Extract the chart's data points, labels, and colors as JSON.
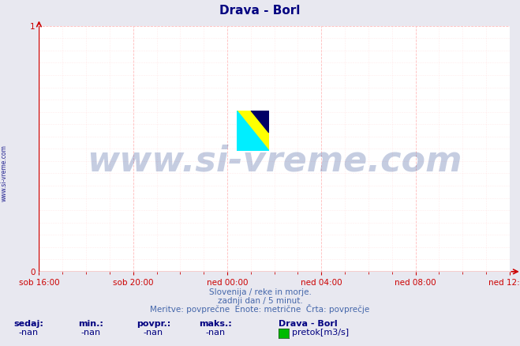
{
  "title": "Drava - Borl",
  "title_color": "#000080",
  "background_color": "#e8e8f0",
  "plot_bg_color": "#ffffff",
  "grid_color": "#ffaaaa",
  "grid_color_minor": "#ffdddd",
  "axis_color": "#cc0000",
  "xlabel_ticks": [
    "sob 16:00",
    "sob 20:00",
    "ned 00:00",
    "ned 04:00",
    "ned 08:00",
    "ned 12:00"
  ],
  "tick_positions": [
    0.0,
    0.2,
    0.4,
    0.6,
    0.8,
    1.0
  ],
  "ylim": [
    0,
    1
  ],
  "xlim": [
    0,
    1
  ],
  "watermark_text": "www.si-vreme.com",
  "watermark_color": "#1a3a8a",
  "watermark_alpha": 0.25,
  "sidebar_text": "www.si-vreme.com",
  "sidebar_color": "#000080",
  "footer_line1": "Slovenija / reke in morje.",
  "footer_line2": "zadnji dan / 5 minut.",
  "footer_line3": "Meritve: povprečne  Enote: metrične  Črta: povprečje",
  "footer_color": "#4466aa",
  "legend_title": "Drava - Borl",
  "legend_label": "pretok[m3/s]",
  "legend_color": "#00bb00",
  "stats_labels": [
    "sedaj:",
    "min.:",
    "povpr.:",
    "maks.:"
  ],
  "stats_values": [
    "-nan",
    "-nan",
    "-nan",
    "-nan"
  ],
  "stats_color": "#000080",
  "logo_yellow": "#ffff00",
  "logo_cyan": "#00eeff",
  "logo_blue": "#000066",
  "tick_color": "#cc0000",
  "tick_label_color": "#cc0000"
}
